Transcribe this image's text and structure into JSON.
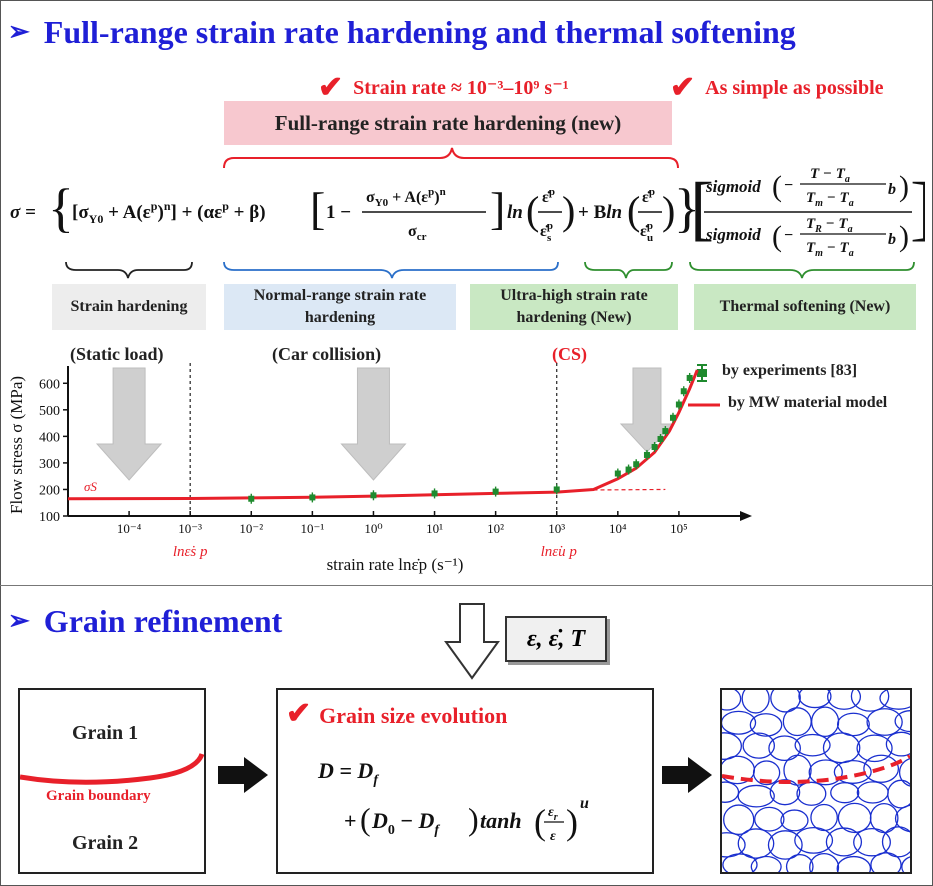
{
  "section1": {
    "title": "Full-range strain rate hardening and thermal softening",
    "check_left": "Strain rate ≈ 10⁻³–10⁹ s⁻¹",
    "check_right": "As simple as possible",
    "pink_label": "Full-range strain rate hardening (new)",
    "equation": {
      "lhs": "σ",
      "term1": "[σY0 + A(εp)n]",
      "term2": "(αεp + β)",
      "fraction_num": "σY0 + A(εp)n",
      "fraction_den": "σcr",
      "ln_term": "ln(ε̇p / ε̇s p)",
      "bln_term": "Bln(ε̇p / ε̇u p)",
      "sig_top": "sigmoid(−(T − Ta)/(Tm − Ta) b)",
      "sig_bottom": "sigmoid(−(TR − Ta)/(Tm − Ta) b)"
    },
    "boxes": [
      {
        "label": "Strain hardening"
      },
      {
        "label": "Normal-range strain rate hardening"
      },
      {
        "label": "Ultra-high strain rate hardening (New)"
      },
      {
        "label": "Thermal softening (New)"
      }
    ],
    "annotations": {
      "static": "(Static load)",
      "car": "(Car collision)",
      "cs": "CS"
    },
    "legend": {
      "experiments": "by experiments [83]",
      "model": "by MW material model"
    },
    "colors": {
      "title_blue": "#1f1fd6",
      "accent_red": "#e8202a",
      "box_gray": "#ededed",
      "box_blue": "#dce8f5",
      "box_green": "#c9e8c3",
      "pink": "#f7c8cf",
      "exp_green": "#1f8a2e"
    }
  },
  "chart_data": {
    "type": "line",
    "xlabel": "strain rate lnε̇p (s⁻¹)",
    "ylabel": "Flow stress σ (MPa)",
    "x_scale": "log",
    "xlim": [
      1e-05,
      1000000.0
    ],
    "ylim": [
      100,
      650
    ],
    "x_ticks": [
      "10⁻⁴",
      "10⁻³",
      "10⁻²",
      "10⁻¹",
      "10⁰",
      "10¹",
      "10²",
      "10³",
      "10⁴",
      "10⁵"
    ],
    "y_ticks": [
      100,
      200,
      300,
      400,
      500,
      600
    ],
    "markers": {
      "sigma_s": "σS",
      "eps_s": "lnε̇s p",
      "eps_u": "lnε̇u p"
    },
    "series": [
      {
        "name": "by experiments [83]",
        "marker": "scatter",
        "x": [
          0.01,
          0.1,
          1,
          10,
          100,
          1000,
          10000,
          15000,
          20000,
          30000,
          40000,
          50000,
          60000,
          80000,
          100000,
          120000,
          150000
        ],
        "y": [
          165,
          170,
          178,
          185,
          192,
          200,
          260,
          275,
          295,
          330,
          360,
          390,
          420,
          470,
          520,
          570,
          620
        ]
      },
      {
        "name": "by MW material model",
        "marker": "line",
        "x": [
          1e-05,
          0.001,
          0.01,
          0.1,
          1,
          10,
          100,
          1000,
          4000,
          10000,
          20000,
          40000,
          70000,
          100000,
          150000,
          200000
        ],
        "y": [
          165,
          166,
          168,
          171,
          175,
          180,
          185,
          190,
          200,
          240,
          280,
          340,
          420,
          490,
          580,
          650
        ]
      }
    ]
  },
  "section2": {
    "title": "Grain refinement",
    "variables": "ε, ε̇, T",
    "grain1": "Grain 1",
    "grain2": "Grain 2",
    "boundary": "Grain boundary",
    "evolution_title": "Grain size evolution",
    "eq_line1": "D = Df",
    "eq_line2": "+(D0 − Df)tanh(εr/ε)u"
  }
}
